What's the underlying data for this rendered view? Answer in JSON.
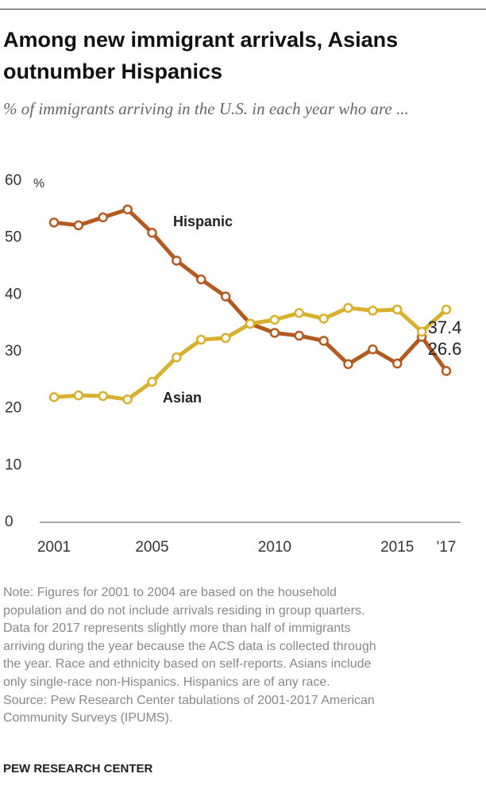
{
  "chart_data": {
    "type": "line",
    "title": "Among new immigrant arrivals, Asians outnumber Hispanics",
    "subtitle": "% of immigrants arriving in the U.S. in each year who are ...",
    "y_unit": "%",
    "x": [
      2001,
      2002,
      2003,
      2004,
      2005,
      2006,
      2007,
      2008,
      2009,
      2010,
      2011,
      2012,
      2013,
      2014,
      2015,
      2016,
      2017
    ],
    "series": [
      {
        "name": "Hispanic",
        "color": "#b35a20",
        "values": [
          52.7,
          52.2,
          53.6,
          55.0,
          50.9,
          46.0,
          42.7,
          39.7,
          34.9,
          33.3,
          32.8,
          31.9,
          27.8,
          30.4,
          27.9,
          32.6,
          26.6
        ]
      },
      {
        "name": "Asian",
        "color": "#d9b02e",
        "values": [
          22.0,
          22.3,
          22.2,
          21.6,
          24.7,
          29.0,
          32.1,
          32.4,
          34.9,
          35.6,
          36.8,
          35.8,
          37.7,
          37.2,
          37.4,
          33.5,
          37.4
        ]
      }
    ],
    "xlim": [
      2001,
      2017
    ],
    "xticks": [
      2001,
      2005,
      2010,
      2015,
      {
        "value": 2017,
        "label": "'17"
      }
    ],
    "ylim": [
      0,
      60
    ],
    "yticks": [
      0,
      10,
      20,
      30,
      40,
      50,
      60
    ],
    "grid": false,
    "note": [
      "Note: Figures for 2001 to 2004 are based on the household",
      "population and do not include arrivals residing in group quarters.",
      "Data for 2017 represents slightly more than half of immigrants",
      "arriving during the year because the ACS data is collected through",
      "the year. Race and ethnicity based on self-reports. Asians include",
      "only single-race non-Hispanics. Hispanics are of any race.",
      "Source: Pew Research Center tabulations of 2001-2017 American",
      "Community Surveys (IPUMS)."
    ],
    "footer": "PEW RESEARCH CENTER"
  }
}
